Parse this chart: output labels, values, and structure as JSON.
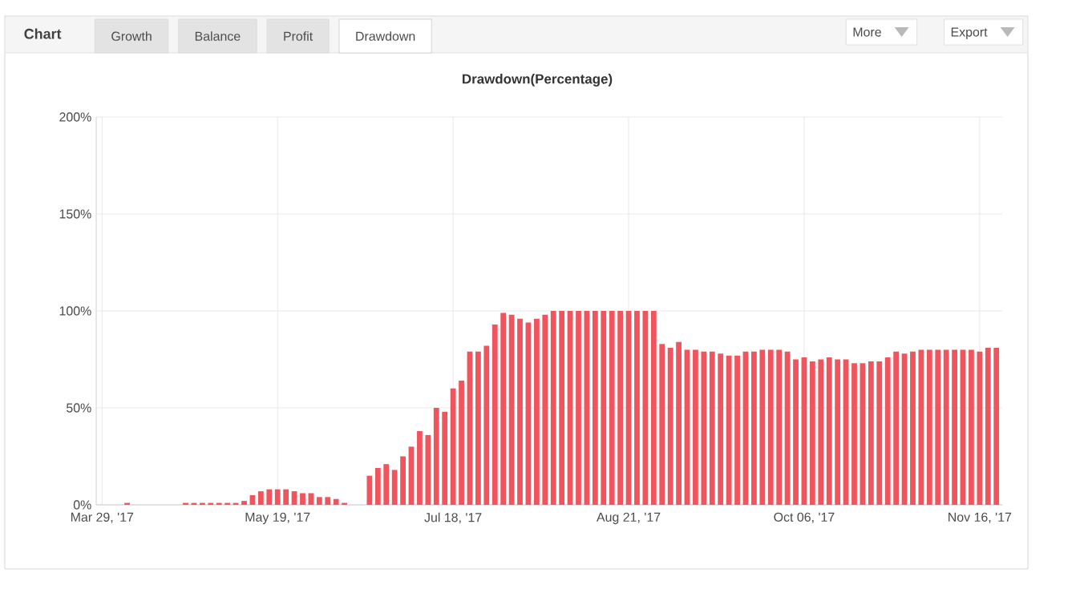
{
  "chart_data": {
    "type": "bar",
    "title": "Drawdown(Percentage)",
    "annotations": [
      "Chart",
      "Growth",
      "Balance",
      "Profit",
      "Drawdown",
      "More",
      "Export"
    ],
    "categories": [
      "Mar 29, '17",
      null,
      null,
      null,
      null,
      null,
      null,
      null,
      null,
      null,
      null,
      null,
      null,
      null,
      null,
      null,
      null,
      null,
      null,
      null,
      null,
      "May 19, '17",
      null,
      null,
      null,
      null,
      null,
      null,
      null,
      null,
      null,
      null,
      null,
      null,
      null,
      null,
      null,
      null,
      null,
      null,
      null,
      null,
      "Jul 18, '17",
      null,
      null,
      null,
      null,
      null,
      null,
      null,
      null,
      null,
      null,
      null,
      null,
      null,
      null,
      null,
      null,
      null,
      null,
      null,
      null,
      "Aug 21, '17",
      null,
      null,
      null,
      null,
      null,
      null,
      null,
      null,
      null,
      null,
      null,
      null,
      null,
      null,
      null,
      null,
      null,
      null,
      null,
      null,
      "Oct 06, '17",
      null,
      null,
      null,
      null,
      null,
      null,
      null,
      null,
      null,
      null,
      null,
      null,
      null,
      null,
      null,
      null,
      null,
      null,
      null,
      null,
      "Nov 16, '17",
      null,
      null
    ],
    "values": [
      0,
      0,
      0,
      1,
      0,
      0,
      0,
      0,
      0,
      0,
      1,
      1,
      1,
      1,
      1,
      1,
      1,
      2,
      5,
      7,
      8,
      8,
      8,
      7,
      6,
      6,
      4,
      4,
      3,
      1,
      0,
      0,
      15,
      19,
      21,
      18,
      25,
      30,
      38,
      36,
      50,
      48,
      60,
      64,
      79,
      79,
      82,
      93,
      99,
      98,
      96,
      94,
      96,
      98,
      100,
      100,
      100,
      100,
      100,
      100,
      100,
      100,
      100,
      100,
      100,
      100,
      100,
      83,
      81,
      84,
      80,
      80,
      79,
      79,
      78,
      77,
      77,
      79,
      79,
      80,
      80,
      80,
      79,
      75,
      76,
      74,
      75,
      76,
      75,
      75,
      73,
      73,
      74,
      74,
      76,
      79,
      78,
      79,
      80,
      80,
      80,
      80,
      80,
      80,
      80,
      79,
      81,
      81
    ],
    "color": "#f0555d",
    "ylim": [
      0,
      200
    ],
    "yticks": [
      {
        "value": 0,
        "label": "0%"
      },
      {
        "value": 50,
        "label": "50%"
      },
      {
        "value": 100,
        "label": "100%"
      },
      {
        "value": 150,
        "label": "150%"
      },
      {
        "value": 200,
        "label": "200%"
      }
    ],
    "grid": true
  }
}
